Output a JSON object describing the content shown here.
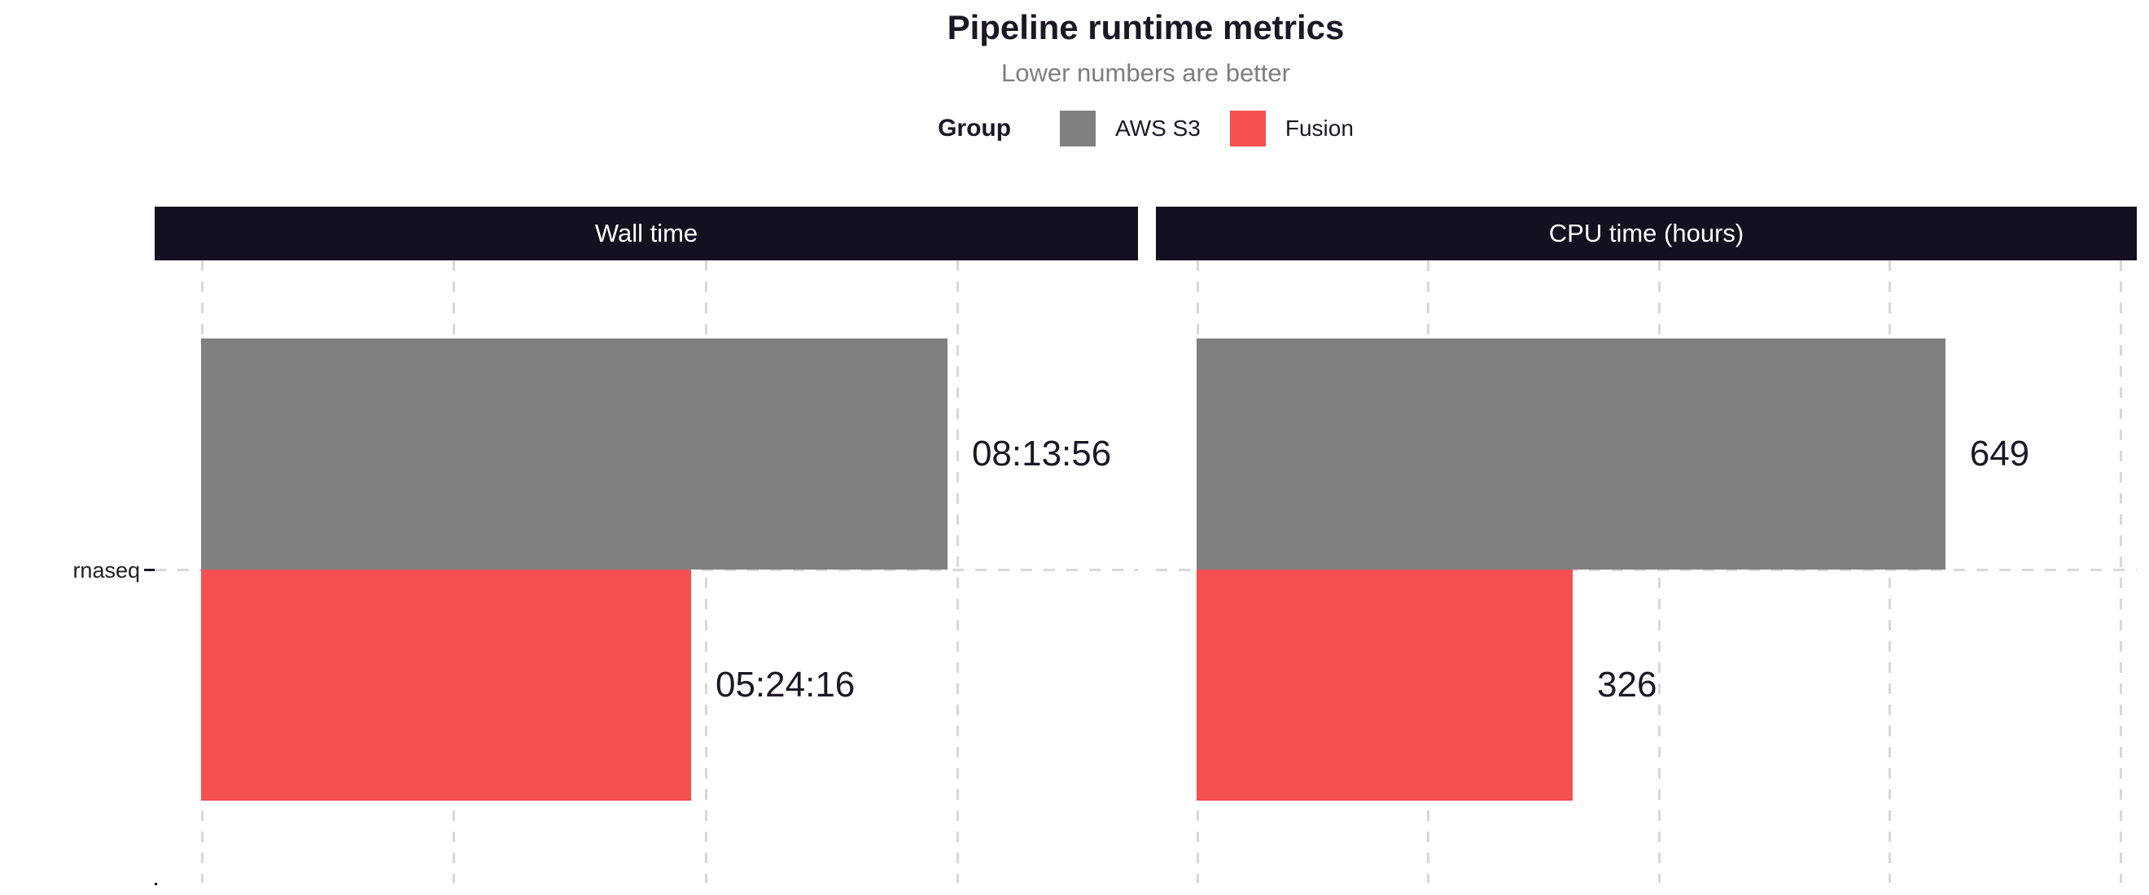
{
  "header": {
    "title": "Pipeline runtime metrics",
    "subtitle": "Lower numbers are better",
    "legend": {
      "title": "Group",
      "items": [
        {
          "label": "AWS S3",
          "color": "#808080"
        },
        {
          "label": "Fusion",
          "color": "#f4504f"
        }
      ]
    }
  },
  "y_axis": {
    "category": "rnaseq"
  },
  "chart_data": {
    "type": "bar",
    "orientation": "horizontal",
    "title": "Pipeline runtime metrics",
    "subtitle": "Lower numbers are better",
    "legend_title": "Group",
    "legend_position": "top",
    "grid": "dashed",
    "categories": [
      "rnaseq"
    ],
    "facets": [
      {
        "label": "Wall time",
        "unit": "seconds",
        "axis_min": 0,
        "axis_max": 37200,
        "grid_step": 10000,
        "series": [
          {
            "name": "AWS S3",
            "value": 29636,
            "display": "08:13:56",
            "color": "#808080"
          },
          {
            "name": "Fusion",
            "value": 19456,
            "display": "05:24:16",
            "color": "#f4504f"
          }
        ]
      },
      {
        "label": "CPU time (hours)",
        "unit": "hours",
        "axis_min": 0,
        "axis_max": 815,
        "grid_step": 200,
        "series": [
          {
            "name": "AWS S3",
            "value": 649,
            "display": "649",
            "color": "#808080"
          },
          {
            "name": "Fusion",
            "value": 326,
            "display": "326",
            "color": "#f4504f"
          }
        ]
      }
    ],
    "colors": {
      "bar_gray": "#808080",
      "bar_red": "#f4504f",
      "strip_background": "#141020",
      "strip_text": "#ffffff",
      "gridline": "#d8d8d8",
      "axis": "#1c1726",
      "title_text": "#1c1726",
      "subtitle_text": "#7e7e7e"
    }
  }
}
